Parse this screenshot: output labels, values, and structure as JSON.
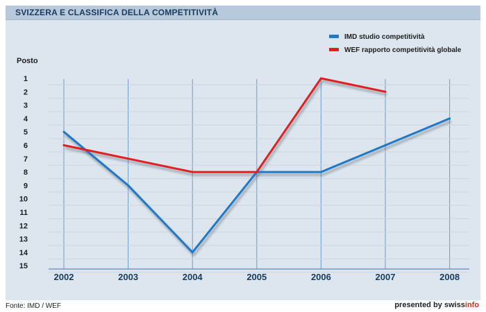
{
  "title": "SVIZZERA E CLASSIFICA DELLA COMPETITIVITÀ",
  "source": "Fonte: IMD / WEF",
  "credit": {
    "prefix": "presented by swiss",
    "accent": "info"
  },
  "colors": {
    "imd": "#1f78c8",
    "wef": "#e02020",
    "grid": "#6e98c3",
    "background": "#dde6ee"
  },
  "chart_data": {
    "type": "line",
    "title": "SVIZZERA E CLASSIFICA DELLA COMPETITIVITÀ",
    "ylabel": "Posto",
    "xlabel": "",
    "x": [
      2002,
      2003,
      2004,
      2005,
      2006,
      2007,
      2008
    ],
    "xticks": [
      "2002",
      "2003",
      "2004",
      "2005",
      "2006",
      "2007",
      "2008"
    ],
    "yticks": [
      "1",
      "2",
      "3",
      "4",
      "5",
      "6",
      "7",
      "8",
      "9",
      "10",
      "11",
      "12",
      "13",
      "14",
      "15"
    ],
    "ylim": [
      1,
      15
    ],
    "y_inverted": true,
    "legend_position": "top-right",
    "grid": "vertical",
    "series": [
      {
        "name": "IMD studio competitività",
        "color": "#1f78c8",
        "values": [
          5,
          9,
          14,
          8,
          8,
          6,
          4
        ]
      },
      {
        "name": "WEF rapporto competitività globale",
        "color": "#e02020",
        "values": [
          6,
          7,
          8,
          8,
          1,
          2,
          null
        ]
      }
    ]
  }
}
